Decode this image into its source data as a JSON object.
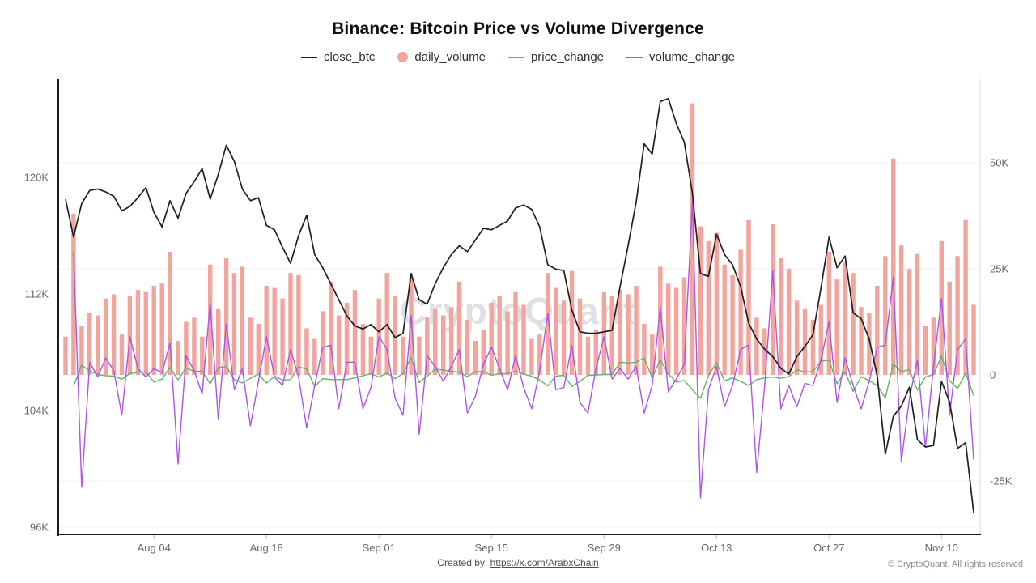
{
  "title": "Binance: Bitcoin Price vs Volume Divergence",
  "watermark": "CryptoQuant",
  "legend": {
    "items": [
      {
        "label": "close_btc",
        "marker": "line",
        "color": "#1f1f22"
      },
      {
        "label": "daily_volume",
        "marker": "circle",
        "color": "#f2a49d"
      },
      {
        "label": "price_change",
        "marker": "line",
        "color": "#66b266"
      },
      {
        "label": "volume_change",
        "marker": "line",
        "color": "#ab55eb"
      }
    ]
  },
  "footer": {
    "created_by_prefix": "Created by: ",
    "link_text": "https://x.com/ArabxChain",
    "copyright": "© CryptoQuant. All rights reserved"
  },
  "chart_data": {
    "type": "mixed",
    "description": "Daily BTC close price line (left axis, K USD) over daily volume bars and day-over-day change lines (right axis, K).",
    "n_points": 114,
    "grid": "horizontal gridlines at right-axis ticks",
    "legend_position": "top-center",
    "left_axis": {
      "ticks": [
        96,
        104,
        112,
        120
      ],
      "tick_labels": [
        "96K",
        "104K",
        "112K",
        "120K"
      ]
    },
    "right_axis": {
      "ticks": [
        -25,
        0,
        25,
        50
      ],
      "tick_labels": [
        "-25K",
        "0",
        "25K",
        "50K"
      ]
    },
    "x_tick_labels": [
      "Aug 04",
      "Aug 18",
      "Sep 01",
      "Sep 15",
      "Sep 29",
      "Oct 13",
      "Oct 27",
      "Nov 10"
    ],
    "x_tick_indices": [
      11,
      25,
      39,
      53,
      67,
      81,
      95,
      109
    ],
    "series": {
      "close_btc": {
        "axis": "left",
        "color": "#1f1f22",
        "style": "line",
        "values": [
          118.5,
          115.9,
          118.2,
          119.1,
          119.2,
          119.0,
          118.7,
          117.7,
          118.0,
          118.6,
          119.3,
          117.6,
          116.6,
          118.4,
          117.2,
          118.9,
          119.7,
          120.6,
          118.5,
          120.2,
          122.2,
          121.1,
          119.2,
          118.4,
          118.6,
          116.7,
          116.4,
          115.2,
          114.1,
          116.0,
          117.4,
          114.7,
          113.8,
          112.7,
          111.6,
          110.5,
          109.8,
          109.6,
          109.9,
          109.4,
          109.9,
          109.0,
          109.3,
          113.4,
          111.6,
          111.3,
          112.7,
          113.8,
          114.7,
          115.3,
          114.9,
          115.7,
          116.5,
          116.4,
          116.7,
          117.0,
          117.9,
          118.1,
          117.8,
          116.6,
          114.0,
          113.7,
          113.6,
          110.9,
          109.4,
          109.3,
          109.3,
          109.4,
          109.5,
          112.5,
          115.3,
          118.3,
          122.3,
          121.6,
          125.2,
          125.4,
          123.7,
          122.4,
          118.9,
          113.4,
          113.2,
          116.1,
          114.7,
          114.0,
          112.5,
          110.0,
          108.9,
          108.2,
          107.7,
          106.9,
          106.5,
          107.7,
          108.4,
          109.2,
          112.4,
          115.9,
          113.8,
          114.6,
          110.7,
          110.3,
          108.9,
          106.4,
          101.0,
          103.6,
          104.3,
          105.6,
          102.0,
          101.5,
          101.6,
          106.0,
          104.6,
          101.4,
          101.8,
          97.0
        ]
      },
      "daily_volume": {
        "axis": "right",
        "color": "#f2a49d",
        "style": "bar",
        "values": [
          9,
          38,
          11.5,
          14.5,
          14,
          18,
          19,
          9.5,
          18.5,
          20,
          19.5,
          21,
          21.5,
          29,
          8,
          12.5,
          13.5,
          9,
          26,
          15.5,
          27.5,
          24,
          25.5,
          13.5,
          12,
          21,
          20.5,
          18,
          24,
          23.5,
          11,
          8.5,
          15,
          22,
          14,
          17,
          20,
          12,
          9,
          18,
          24,
          18.5,
          9,
          23,
          9,
          13.5,
          15.5,
          14,
          16,
          22,
          13,
          8,
          10.5,
          17,
          18.5,
          15,
          19.5,
          16.5,
          8.5,
          9.5,
          24,
          20.5,
          17.5,
          24.5,
          18,
          9,
          10.5,
          19.5,
          18.5,
          20,
          19,
          21,
          12,
          9.5,
          25.5,
          21.5,
          20.5,
          23,
          64,
          35,
          31.5,
          33.5,
          26,
          23.5,
          29.5,
          36.5,
          13.5,
          11,
          35.5,
          27.5,
          25,
          17.5,
          15.5,
          13,
          16.5,
          29,
          22.5,
          26.5,
          24,
          16,
          14.5,
          21,
          28,
          51,
          30.5,
          25,
          28.5,
          11.5,
          13.5,
          31.5,
          22,
          28,
          36.5,
          16.5
        ]
      },
      "price_change": {
        "axis": "right",
        "color": "#66b266",
        "style": "line",
        "derived": "close_btc[i] - close_btc[i-1]"
      },
      "volume_change": {
        "axis": "right",
        "color": "#ab55eb",
        "style": "line",
        "derived": "daily_volume[i] - daily_volume[i-1]"
      }
    }
  }
}
